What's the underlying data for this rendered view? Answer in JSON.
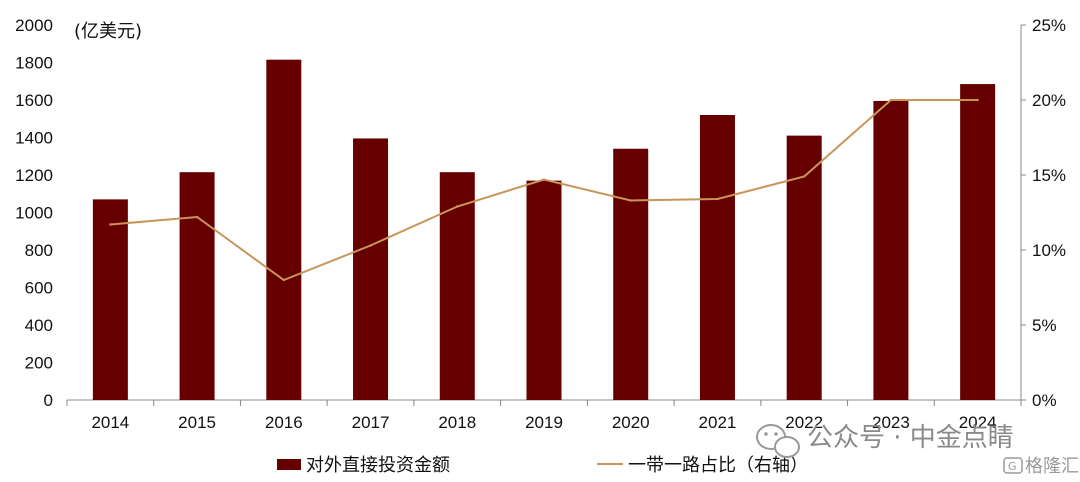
{
  "chart_data": {
    "type": "bar",
    "categories": [
      "2014",
      "2015",
      "2016",
      "2017",
      "2018",
      "2019",
      "2020",
      "2021",
      "2022",
      "2023",
      "2024"
    ],
    "series": [
      {
        "name": "对外直接投资金额",
        "type": "bar",
        "axis": "left",
        "color": "#660000",
        "values": [
          1070,
          1215,
          1815,
          1395,
          1215,
          1170,
          1340,
          1520,
          1410,
          1595,
          1685
        ]
      },
      {
        "name": "一带一路占比（右轴）",
        "type": "line",
        "axis": "right",
        "color": "#c8965a",
        "values": [
          11.7,
          12.2,
          8.0,
          10.3,
          12.9,
          14.7,
          13.3,
          13.4,
          14.9,
          20.0,
          20.0
        ]
      }
    ],
    "ylabel": "(亿美元)",
    "ylim": [
      0,
      2000
    ],
    "yticks": [
      "0",
      "200",
      "400",
      "600",
      "800",
      "1000",
      "1200",
      "1400",
      "1600",
      "1800",
      "2000"
    ],
    "y2lim": [
      0,
      25
    ],
    "y2ticks": [
      "0%",
      "5%",
      "10%",
      "15%",
      "20%",
      "25%"
    ],
    "grid": false,
    "legend_position": "bottom"
  },
  "watermark": {
    "text": "公众号 · 中金点睛",
    "brand": "格隆汇"
  }
}
